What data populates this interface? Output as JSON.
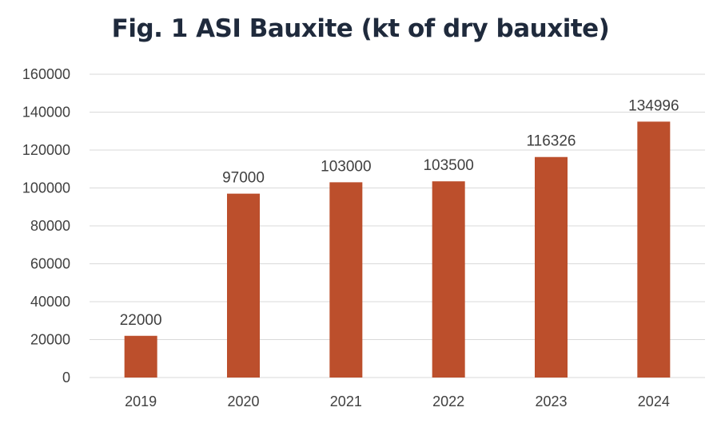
{
  "chart_data": {
    "type": "bar",
    "title": "Fig. 1  ASI Bauxite (kt of dry bauxite)",
    "categories": [
      "2019",
      "2020",
      "2021",
      "2022",
      "2023",
      "2024"
    ],
    "values": [
      22000,
      97000,
      103000,
      103500,
      116326,
      134996
    ],
    "data_labels": [
      "22000",
      "97000",
      "103000",
      "103500",
      "116326",
      "134996"
    ],
    "ylim": [
      0,
      160000
    ],
    "yticks": [
      0,
      20000,
      40000,
      60000,
      80000,
      100000,
      120000,
      140000,
      160000
    ],
    "ytick_labels": [
      "0",
      "20000",
      "40000",
      "60000",
      "80000",
      "100000",
      "120000",
      "140000",
      "160000"
    ],
    "grid": true,
    "bar_color": "#bc4f2c"
  }
}
